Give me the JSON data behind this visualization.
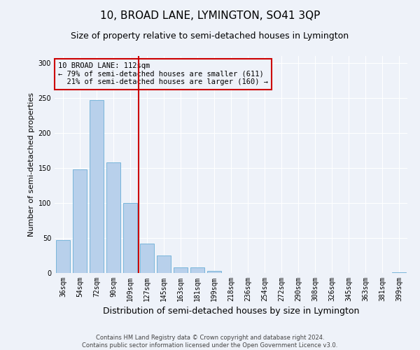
{
  "title1": "10, BROAD LANE, LYMINGTON, SO41 3QP",
  "title2": "Size of property relative to semi-detached houses in Lymington",
  "xlabel": "Distribution of semi-detached houses by size in Lymington",
  "ylabel": "Number of semi-detached properties",
  "categories": [
    "36sqm",
    "54sqm",
    "72sqm",
    "90sqm",
    "109sqm",
    "127sqm",
    "145sqm",
    "163sqm",
    "181sqm",
    "199sqm",
    "218sqm",
    "236sqm",
    "254sqm",
    "272sqm",
    "290sqm",
    "308sqm",
    "326sqm",
    "345sqm",
    "363sqm",
    "381sqm",
    "399sqm"
  ],
  "values": [
    47,
    148,
    247,
    158,
    100,
    42,
    25,
    8,
    8,
    3,
    0,
    0,
    0,
    0,
    0,
    0,
    0,
    0,
    0,
    0,
    1
  ],
  "bar_color": "#b8d0eb",
  "bar_edge_color": "#6aaed6",
  "property_label": "10 BROAD LANE: 112sqm",
  "pct_smaller": 79,
  "count_smaller": 611,
  "pct_larger": 21,
  "count_larger": 160,
  "vline_color": "#cc0000",
  "ylim": [
    0,
    310
  ],
  "footnote1": "Contains HM Land Registry data © Crown copyright and database right 2024.",
  "footnote2": "Contains public sector information licensed under the Open Government Licence v3.0.",
  "bg_color": "#eef2f9",
  "grid_color": "#ffffff",
  "title1_fontsize": 11,
  "title2_fontsize": 9,
  "ylabel_fontsize": 8,
  "xlabel_fontsize": 9,
  "tick_fontsize": 7,
  "footnote_fontsize": 6
}
